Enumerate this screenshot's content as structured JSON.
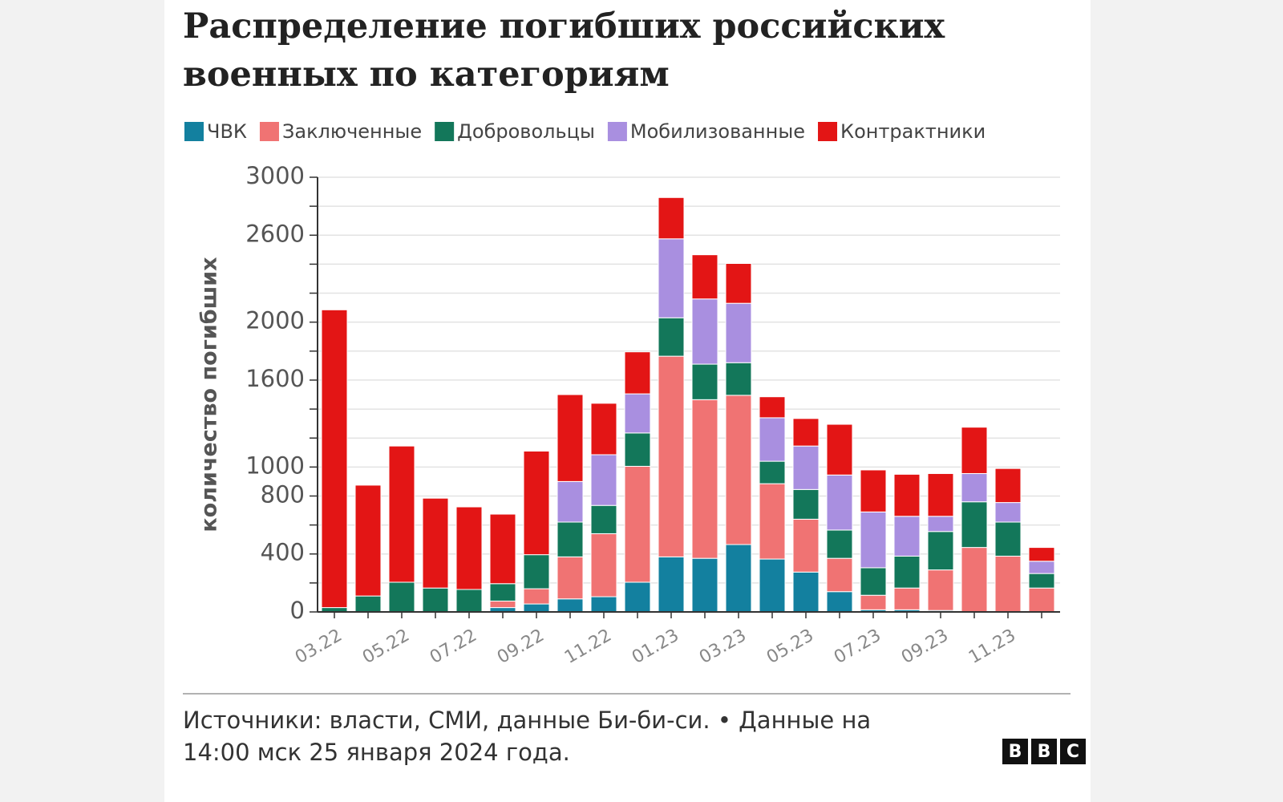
{
  "chart_data": {
    "type": "stacked_bar",
    "title": [
      "Распределение погибших российских",
      "военных по категориям"
    ],
    "y_label": "количество погибших",
    "categories": [
      "03.22",
      null,
      "05.22",
      null,
      "07.22",
      null,
      "09.22",
      null,
      "11.22",
      null,
      "01.23",
      null,
      "03.23",
      null,
      "05.23",
      null,
      "07.23",
      null,
      "09.23",
      null,
      "11.23",
      null
    ],
    "series": [
      {
        "name": "ЧВК",
        "color": "#13809f",
        "values": [
          0,
          0,
          0,
          0,
          0,
          30,
          55,
          90,
          105,
          205,
          380,
          370,
          465,
          365,
          275,
          140,
          15,
          15,
          10,
          0,
          0,
          0
        ]
      },
      {
        "name": "Заключенные",
        "color": "#f07373",
        "values": [
          0,
          0,
          0,
          0,
          0,
          45,
          105,
          290,
          435,
          800,
          1385,
          1095,
          1030,
          520,
          365,
          230,
          100,
          150,
          280,
          445,
          385,
          165
        ]
      },
      {
        "name": "Добровольцы",
        "color": "#13775a",
        "values": [
          30,
          110,
          205,
          165,
          155,
          120,
          235,
          240,
          195,
          230,
          265,
          245,
          225,
          155,
          205,
          195,
          190,
          220,
          265,
          315,
          235,
          100
        ]
      },
      {
        "name": "Мобилизованные",
        "color": "#a98fe0",
        "values": [
          0,
          0,
          0,
          0,
          0,
          0,
          0,
          280,
          350,
          270,
          545,
          450,
          410,
          300,
          300,
          380,
          385,
          275,
          105,
          195,
          135,
          85
        ]
      },
      {
        "name": "Контрактники",
        "color": "#e31515",
        "values": [
          2055,
          765,
          940,
          620,
          570,
          480,
          715,
          600,
          355,
          290,
          285,
          305,
          275,
          145,
          190,
          350,
          290,
          290,
          295,
          320,
          235,
          95
        ]
      }
    ],
    "ylim": [
      0,
      3000
    ],
    "yticks": [
      0,
      400,
      800,
      1000,
      1600,
      2000,
      2600,
      3000
    ],
    "minor_yticks": [
      200,
      600,
      1200,
      1400,
      1800,
      2200,
      2400,
      2800
    ],
    "grid": true,
    "source": [
      "Источники: власти, СМИ, данные Би-би-си. • Данные на",
      "14:00 мск 25 января 2024 года."
    ],
    "logo": [
      "B",
      "B",
      "C"
    ]
  }
}
